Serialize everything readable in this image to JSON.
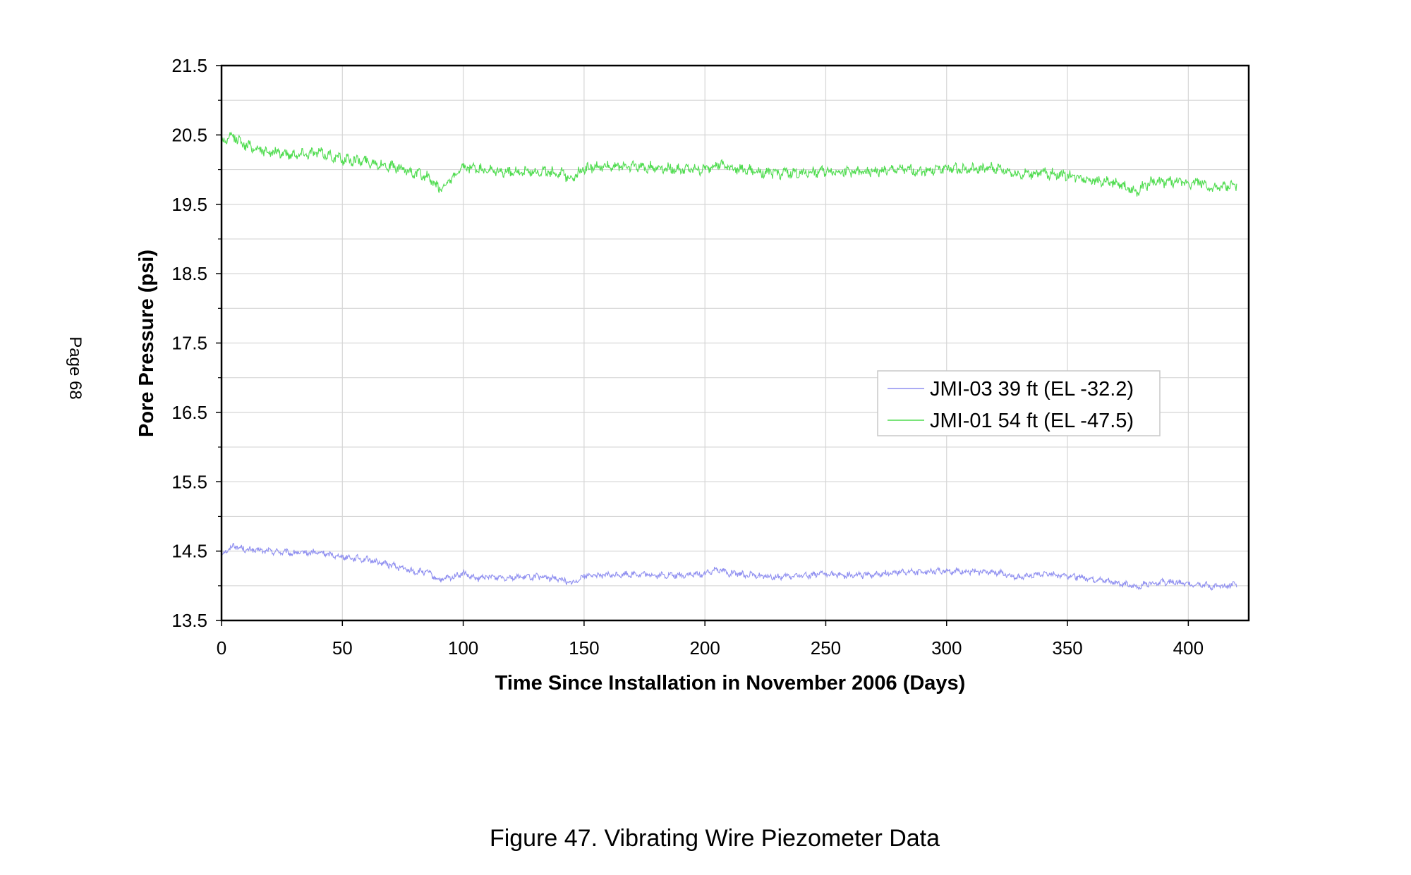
{
  "page_label": "Page 68",
  "caption": "Figure 47.  Vibrating Wire Piezometer Data",
  "chart_data": {
    "type": "line",
    "title": "",
    "xlabel": "Time Since Installation in November 2006 (Days)",
    "ylabel": "Pore Pressure (psi)",
    "xlim": [
      0,
      425
    ],
    "ylim": [
      13.5,
      21.5
    ],
    "x_ticks": [
      0,
      50,
      100,
      150,
      200,
      250,
      300,
      350,
      400
    ],
    "x_tick_labels": [
      "0",
      "50",
      "100",
      "150",
      "200",
      "250",
      "300",
      "350",
      "400"
    ],
    "y_ticks": [
      13.5,
      14.5,
      15.5,
      16.5,
      17.5,
      18.5,
      19.5,
      20.5,
      21.5
    ],
    "y_tick_labels": [
      "13.5",
      "14.5",
      "15.5",
      "16.5",
      "17.5",
      "18.5",
      "19.5",
      "20.5",
      "21.5"
    ],
    "grid": true,
    "legend_position": "center-right",
    "series": [
      {
        "name": "JMI-03 39 ft (EL -32.2)",
        "color": "#8f8ff0",
        "x": [
          0,
          5,
          10,
          20,
          30,
          40,
          50,
          60,
          70,
          80,
          85,
          90,
          95,
          100,
          105,
          110,
          120,
          130,
          140,
          145,
          150,
          160,
          170,
          180,
          190,
          200,
          205,
          210,
          220,
          230,
          240,
          250,
          260,
          270,
          280,
          290,
          300,
          310,
          320,
          330,
          340,
          350,
          360,
          370,
          378,
          385,
          395,
          400,
          405,
          410,
          420
        ],
        "y": [
          14.45,
          14.58,
          14.52,
          14.5,
          14.47,
          14.48,
          14.42,
          14.38,
          14.3,
          14.2,
          14.2,
          14.08,
          14.12,
          14.18,
          14.1,
          14.13,
          14.12,
          14.13,
          14.1,
          14.03,
          14.15,
          14.15,
          14.17,
          14.15,
          14.15,
          14.17,
          14.25,
          14.18,
          14.15,
          14.12,
          14.15,
          14.17,
          14.15,
          14.16,
          14.2,
          14.2,
          14.22,
          14.2,
          14.2,
          14.12,
          14.17,
          14.15,
          14.1,
          14.05,
          13.98,
          14.05,
          14.05,
          14.02,
          14.03,
          13.98,
          14.02
        ]
      },
      {
        "name": "JMI-01 54 ft (EL -47.5)",
        "color": "#4fdc4f",
        "x": [
          0,
          5,
          10,
          20,
          30,
          40,
          50,
          60,
          70,
          80,
          85,
          90,
          95,
          100,
          105,
          110,
          120,
          130,
          140,
          145,
          150,
          160,
          170,
          180,
          190,
          200,
          205,
          210,
          220,
          230,
          240,
          250,
          260,
          270,
          280,
          290,
          300,
          310,
          320,
          330,
          340,
          350,
          360,
          370,
          378,
          385,
          395,
          400,
          405,
          410,
          420
        ],
        "y": [
          20.4,
          20.48,
          20.35,
          20.25,
          20.22,
          20.25,
          20.15,
          20.12,
          20.05,
          19.95,
          19.9,
          19.72,
          19.85,
          20.02,
          20.02,
          19.98,
          19.96,
          19.98,
          19.95,
          19.88,
          20.02,
          20.05,
          20.05,
          20.03,
          20.0,
          20.0,
          20.08,
          20.03,
          19.98,
          19.95,
          19.95,
          19.98,
          19.97,
          19.97,
          20.0,
          19.98,
          20.02,
          20.0,
          20.02,
          19.93,
          19.95,
          19.92,
          19.85,
          19.8,
          19.68,
          19.82,
          19.82,
          19.8,
          19.82,
          19.72,
          19.78
        ]
      }
    ]
  }
}
